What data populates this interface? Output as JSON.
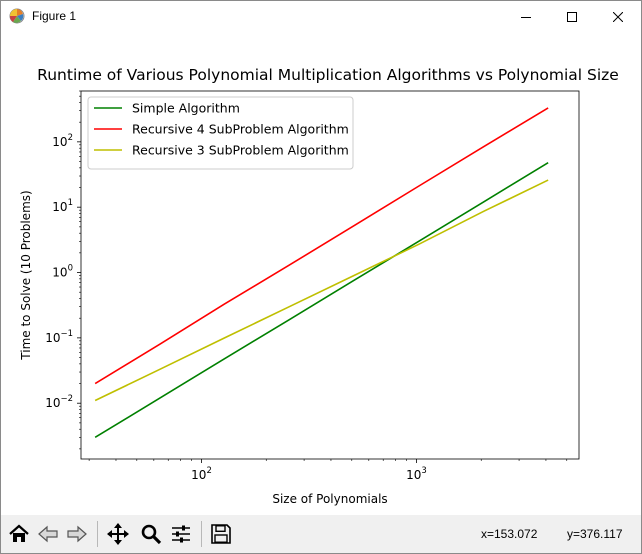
{
  "window": {
    "title": "Figure 1"
  },
  "plot": {
    "title": "Runtime of Various Polynomial Multiplication Algorithms vs Polynomial Size",
    "xlabel": "Size of Polynomials",
    "ylabel": "Time to Solve (10 Problems)",
    "x_ticks": [
      {
        "base": "10",
        "exp": "2",
        "value": 100
      },
      {
        "base": "10",
        "exp": "3",
        "value": 1000
      }
    ],
    "y_ticks": [
      {
        "base": "10",
        "exp": "−2",
        "value": 0.01
      },
      {
        "base": "10",
        "exp": "−1",
        "value": 0.1
      },
      {
        "base": "10",
        "exp": "0",
        "value": 1
      },
      {
        "base": "10",
        "exp": "1",
        "value": 10
      },
      {
        "base": "10",
        "exp": "2",
        "value": 100
      }
    ]
  },
  "chart_data": {
    "type": "line",
    "xscale": "log",
    "yscale": "log",
    "xlim": [
      27.5,
      5700
    ],
    "ylim": [
      0.0014,
      600
    ],
    "grid": false,
    "legend_placement": "upper-left",
    "series": [
      {
        "name": "Simple Algorithm",
        "color": "#008000",
        "x": [
          32,
          64,
          128,
          256,
          512,
          1024,
          2048,
          4096
        ],
        "y": [
          0.003,
          0.012,
          0.048,
          0.19,
          0.76,
          3.0,
          12.0,
          48.0
        ]
      },
      {
        "name": "Recursive 4 SubProblem Algorithm",
        "color": "#ff0000",
        "x": [
          32,
          64,
          128,
          256,
          512,
          1024,
          2048,
          4096
        ],
        "y": [
          0.02,
          0.08,
          0.33,
          1.3,
          5.2,
          21.0,
          84.0,
          330.0
        ]
      },
      {
        "name": "Recursive 3 SubProblem Algorithm",
        "color": "#bfbf00",
        "x": [
          32,
          64,
          128,
          256,
          512,
          1024,
          2048,
          4096
        ],
        "y": [
          0.011,
          0.033,
          0.1,
          0.3,
          0.9,
          2.7,
          8.6,
          26.0
        ]
      }
    ]
  },
  "toolbar": {
    "coord_x": "x=153.072",
    "coord_y": "y=376.117"
  }
}
